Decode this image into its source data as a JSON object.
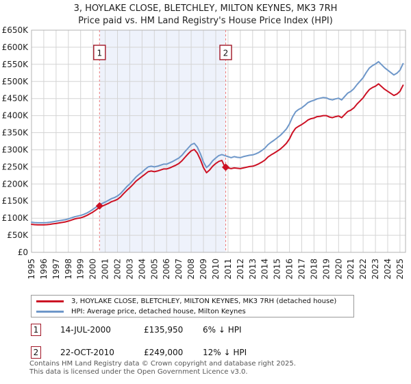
{
  "title": "3, HOYLAKE CLOSE, BLETCHLEY, MILTON KEYNES, MK3 7RH",
  "subtitle": "Price paid vs. HM Land Registry's House Price Index (HPI)",
  "chart_data": {
    "type": "line",
    "value_unit": "GBP thousands",
    "x_start": 1995,
    "x_step": 0.25,
    "xlim": [
      1995,
      2025.45
    ],
    "ylim": [
      0,
      650
    ],
    "grid": true,
    "x_ticks": [
      1995,
      1996,
      1997,
      1998,
      1999,
      2000,
      2001,
      2002,
      2003,
      2004,
      2005,
      2006,
      2007,
      2008,
      2009,
      2010,
      2011,
      2012,
      2013,
      2014,
      2015,
      2016,
      2017,
      2018,
      2019,
      2020,
      2021,
      2022,
      2023,
      2024,
      2025
    ],
    "y_ticks": [
      0,
      50,
      100,
      150,
      200,
      250,
      300,
      350,
      400,
      450,
      500,
      550,
      600,
      650
    ],
    "y_tick_labels": [
      "£0",
      "£50K",
      "£100K",
      "£150K",
      "£200K",
      "£250K",
      "£300K",
      "£350K",
      "£400K",
      "£450K",
      "£500K",
      "£550K",
      "£600K",
      "£650K"
    ],
    "series": [
      {
        "name": "hpi",
        "label": "HPI: Average price, detached house, Milton Keynes",
        "color": "#6e97c9",
        "values": [
          88,
          87,
          86.5,
          86.5,
          86.5,
          87,
          88,
          89.5,
          91,
          92.5,
          94,
          95.5,
          98,
          101,
          104,
          106,
          108,
          111,
          115,
          120,
          126,
          132,
          139,
          143,
          147,
          152,
          157,
          160,
          165,
          172,
          182,
          192,
          200,
          210,
          220,
          228,
          235,
          243,
          250,
          252,
          250,
          252,
          255,
          258,
          258,
          262,
          266,
          271,
          276,
          284,
          295,
          305,
          315,
          319,
          308,
          288,
          264,
          248,
          256,
          268,
          276,
          283,
          286,
          283,
          280,
          277,
          280,
          278,
          277,
          280,
          282,
          284,
          285,
          288,
          292,
          298,
          305,
          315,
          322,
          328,
          335,
          342,
          351,
          361,
          376,
          396,
          411,
          418,
          423,
          430,
          438,
          442,
          445,
          449,
          451,
          453,
          452,
          448,
          446,
          449,
          451,
          446,
          456,
          466,
          471,
          479,
          491,
          501,
          511,
          526,
          539,
          546,
          551,
          558,
          549,
          540,
          533,
          526,
          519,
          524,
          533,
          552
        ]
      },
      {
        "name": "price-paid",
        "label": "3, HOYLAKE CLOSE, BLETCHLEY, MILTON KEYNES, MK3 7RH (detached house)",
        "color": "#cc1124",
        "values": [
          82,
          81,
          80.5,
          80.5,
          80.5,
          81,
          82,
          83.5,
          84.5,
          86,
          87.5,
          89,
          91.5,
          94.5,
          97.5,
          99.5,
          101,
          104,
          108,
          113,
          118,
          124,
          131,
          135,
          139,
          143,
          148,
          151,
          155,
          162,
          172,
          181,
          189,
          198,
          208,
          215,
          222,
          229,
          236,
          238,
          236,
          238,
          241,
          244,
          244,
          247,
          251,
          255,
          260,
          268,
          278,
          288,
          297,
          301,
          290,
          271,
          248,
          233,
          241,
          252,
          260,
          266,
          269,
          249,
          247,
          245,
          247,
          246,
          245,
          247,
          249,
          251,
          252,
          255,
          259,
          264,
          270,
          279,
          285,
          290,
          296,
          302,
          310,
          319,
          332,
          350,
          363,
          369,
          374,
          380,
          387,
          391,
          393,
          397,
          398,
          400,
          400,
          396,
          394,
          397,
          399,
          394,
          403,
          412,
          416,
          423,
          434,
          443,
          452,
          465,
          476,
          482,
          486,
          493,
          485,
          477,
          471,
          465,
          459,
          463,
          471,
          489
        ]
      }
    ],
    "markers": [
      {
        "n": "1",
        "x": 2000.54,
        "value": 135.95
      },
      {
        "n": "2",
        "x": 2010.81,
        "value": 249
      }
    ],
    "shaded_span": [
      2000.54,
      2010.81
    ],
    "colors": {
      "gridline": "#d4d4d4",
      "plot_border": "#b3b3b3",
      "marker_dash": "#ef7a7a",
      "marker_box_border": "#a01525",
      "shading": "#eef2fb"
    }
  },
  "legend": {
    "items": [
      {
        "swatch_color": "#cc1124",
        "label": "3, HOYLAKE CLOSE, BLETCHLEY, MILTON KEYNES, MK3 7RH (detached house)"
      },
      {
        "swatch_color": "#6e97c9",
        "label": "HPI: Average price, detached house, Milton Keynes"
      }
    ]
  },
  "transactions": [
    {
      "marker": "1",
      "date": "14-JUL-2000",
      "price": "£135,950",
      "hpi_diff": "6% ↓ HPI"
    },
    {
      "marker": "2",
      "date": "22-OCT-2010",
      "price": "£249,000",
      "hpi_diff": "12% ↓ HPI"
    }
  ],
  "footer": {
    "line1": "Contains HM Land Registry data © Crown copyright and database right 2025.",
    "line2": "This data is licensed under the Open Government Licence v3.0."
  }
}
